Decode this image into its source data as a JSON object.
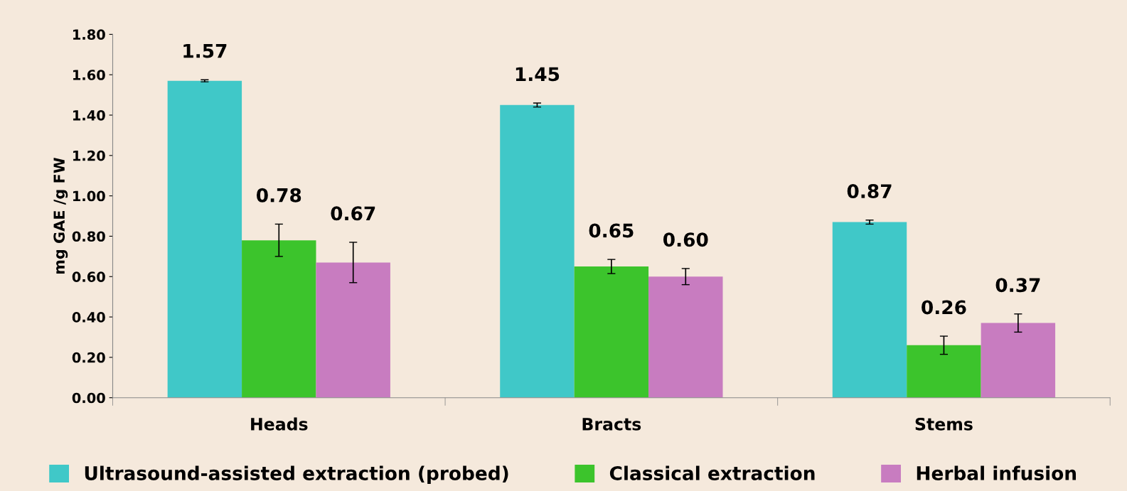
{
  "chart_data": {
    "type": "bar",
    "ylabel": "mg GAE /g FW",
    "categories": [
      "Heads",
      "Bracts",
      "Stems"
    ],
    "series": [
      {
        "name": "Ultrasound-assisted extraction (probed)",
        "color": "#40c8c8",
        "values": [
          1.57,
          1.45,
          0.87
        ],
        "errors": [
          0.005,
          0.01,
          0.01
        ],
        "value_labels": [
          "1.57",
          "1.45",
          "0.87"
        ]
      },
      {
        "name": "Classical extraction",
        "color": "#3cc42c",
        "values": [
          0.78,
          0.65,
          0.26
        ],
        "errors": [
          0.08,
          0.035,
          0.045
        ],
        "value_labels": [
          "0.78",
          "0.65",
          "0.26"
        ]
      },
      {
        "name": "Herbal infusion",
        "color": "#c87cc0",
        "values": [
          0.67,
          0.6,
          0.37
        ],
        "errors": [
          0.1,
          0.04,
          0.045
        ],
        "value_labels": [
          "0.67",
          "0.60",
          "0.37"
        ]
      }
    ],
    "ylim": [
      0,
      1.8
    ],
    "yticks": [
      {
        "value": 0,
        "label": "0.00"
      },
      {
        "value": 0.2,
        "label": "0.20"
      },
      {
        "value": 0.4,
        "label": "0.40"
      },
      {
        "value": 0.6,
        "label": "0.60"
      },
      {
        "value": 0.8,
        "label": "0.80"
      },
      {
        "value": 1.0,
        "label": "1.00"
      },
      {
        "value": 1.2,
        "label": "1.20"
      },
      {
        "value": 1.4,
        "label": "1.40"
      },
      {
        "value": 1.6,
        "label": "1.60"
      },
      {
        "value": 1.8,
        "label": "1.80"
      }
    ],
    "legend": "bottom",
    "grid": false
  }
}
